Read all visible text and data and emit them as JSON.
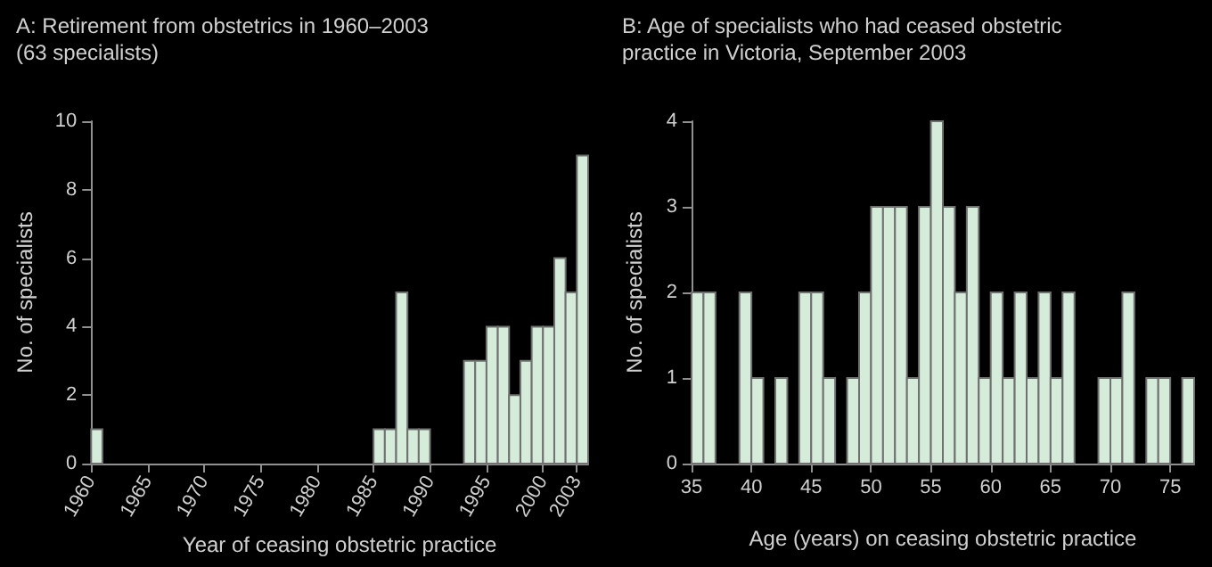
{
  "chart_data": [
    {
      "type": "histogram",
      "title": "A: Retirement from obstetrics in 1960–2003\n(63 specialists)",
      "xlabel": "Year of ceasing obstetric practice",
      "ylabel": "No. of specialists",
      "color": "#d4ecd9",
      "bins": [
        1960,
        1961,
        1962,
        1963,
        1964,
        1965,
        1966,
        1967,
        1968,
        1969,
        1970,
        1971,
        1972,
        1973,
        1974,
        1975,
        1976,
        1977,
        1978,
        1979,
        1980,
        1981,
        1982,
        1983,
        1984,
        1985,
        1986,
        1987,
        1988,
        1989,
        1990,
        1991,
        1992,
        1993,
        1994,
        1995,
        1996,
        1997,
        1998,
        1999,
        2000,
        2001,
        2002,
        2003,
        2004
      ],
      "values": [
        1,
        0,
        0,
        0,
        0,
        0,
        0,
        0,
        0,
        0,
        0,
        0,
        0,
        0,
        0,
        0,
        0,
        0,
        0,
        0,
        0,
        0,
        0,
        0,
        0,
        1,
        1,
        5,
        1,
        1,
        0,
        0,
        0,
        3,
        3,
        4,
        4,
        2,
        3,
        4,
        4,
        6,
        5,
        9
      ],
      "xlim": [
        1960,
        2004
      ],
      "xticks": [
        1960,
        1965,
        1970,
        1975,
        1980,
        1985,
        1990,
        1995,
        2000,
        2003
      ],
      "ylim": [
        0,
        10
      ],
      "yticks": [
        0,
        2,
        4,
        6,
        8,
        10
      ]
    },
    {
      "type": "histogram",
      "title": "B: Age of specialists who had ceased obstetric\npractice in Victoria, September 2003",
      "xlabel": "Age (years) on ceasing obstetric practice",
      "ylabel": "No. of specialists",
      "color": "#d4ecd9",
      "bins": [
        35,
        36,
        37,
        38,
        39,
        40,
        41,
        42,
        43,
        44,
        45,
        46,
        47,
        48,
        49,
        50,
        51,
        52,
        53,
        54,
        55,
        56,
        57,
        58,
        59,
        60,
        61,
        62,
        63,
        64,
        65,
        66,
        67,
        68,
        69,
        70,
        71,
        72,
        73,
        74,
        75,
        76,
        77
      ],
      "values": [
        2,
        2,
        0,
        0,
        2,
        1,
        0,
        1,
        0,
        2,
        2,
        1,
        0,
        1,
        2,
        3,
        3,
        3,
        1,
        3,
        4,
        3,
        2,
        3,
        1,
        2,
        1,
        2,
        1,
        2,
        1,
        2,
        0,
        0,
        1,
        1,
        2,
        0,
        1,
        1,
        0,
        1
      ],
      "xlim": [
        35,
        77
      ],
      "xticks": [
        35,
        40,
        45,
        50,
        55,
        60,
        65,
        70,
        75
      ],
      "ylim": [
        0,
        4
      ],
      "yticks": [
        0,
        1,
        2,
        3,
        4
      ]
    }
  ]
}
